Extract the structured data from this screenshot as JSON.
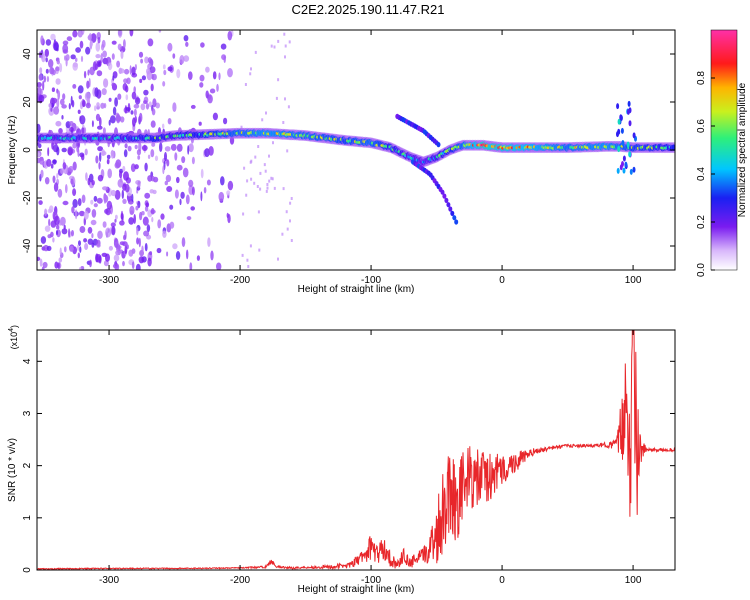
{
  "figure_title": "C2E2.2025.190.11.47.R21",
  "colors": {
    "snr_line": "#e8262a",
    "axis": "#000000",
    "colormap": [
      "#ffffff",
      "#b77bf7",
      "#7a1cf0",
      "#1a20f2",
      "#00c6ff",
      "#2ef07a",
      "#c9f01e",
      "#ffb400",
      "#ff1a1a",
      "#ff30a8"
    ]
  },
  "chart_data": [
    {
      "type": "heatmap",
      "title": "C2E2.2025.190.11.47.R21",
      "xlabel": "Height of straight line (km)",
      "ylabel": "Frequency (Hz)",
      "xlim": [
        -355,
        132
      ],
      "ylim": [
        -50,
        50
      ],
      "x_ticks": [
        -300,
        -200,
        -100,
        0,
        100
      ],
      "y_ticks": [
        -40,
        -20,
        0,
        20,
        40
      ],
      "x_tick_labels": [
        "-300",
        "-200",
        "-100",
        "0",
        "100"
      ],
      "y_tick_labels": [
        "-40",
        "-20",
        "0",
        "20",
        "40"
      ],
      "colorbar": {
        "label": "Normalized spectral amplitude",
        "range": [
          0,
          1
        ],
        "ticks": [
          0.0,
          0.2,
          0.4,
          0.6,
          0.8
        ],
        "tick_labels": [
          "0.0",
          "0.2",
          "0.4",
          "0.6",
          "0.8"
        ]
      },
      "ridge": {
        "description_units": "frequency (Hz) of the dominant spectral line vs height (km)",
        "x": [
          -355,
          -300,
          -265,
          -250,
          -200,
          -180,
          -150,
          -120,
          -100,
          -85,
          -70,
          -60,
          -50,
          -40,
          -30,
          -15,
          0,
          20,
          50,
          80,
          90,
          100,
          132
        ],
        "y": [
          5,
          5,
          5,
          6,
          7,
          7,
          6,
          4,
          3,
          1,
          -3,
          -5,
          -3,
          0,
          2,
          2,
          1,
          1,
          1,
          1.5,
          1.5,
          1,
          1
        ],
        "amplitude": [
          0.5,
          0.5,
          0.6,
          0.55,
          0.7,
          0.75,
          0.7,
          0.65,
          0.7,
          0.6,
          0.5,
          0.45,
          0.55,
          0.6,
          0.7,
          0.9,
          0.85,
          0.8,
          0.7,
          0.75,
          0.7,
          0.65,
          0.6
        ]
      },
      "noise_band": {
        "x_range": [
          -355,
          -205
        ],
        "y_range": [
          -50,
          50
        ],
        "amplitude": 0.2
      },
      "branches": [
        {
          "x": [
            -80,
            -60,
            -48
          ],
          "y": [
            14,
            8,
            2
          ]
        },
        {
          "x": [
            -68,
            -55,
            -45,
            -35
          ],
          "y": [
            -5,
            -10,
            -18,
            -30
          ]
        }
      ],
      "spike_region": {
        "x_range": [
          88,
          102
        ],
        "y_range": [
          -12,
          20
        ]
      }
    },
    {
      "type": "line",
      "xlabel": "Height of straight line (km)",
      "ylabel": "SNR (10 * v/v)",
      "y_scale_label": "(x10",
      "y_scale_exponent": "4",
      "xlim": [
        -355,
        132
      ],
      "ylim": [
        0,
        4.6
      ],
      "x_ticks": [
        -300,
        -200,
        -100,
        0,
        100
      ],
      "y_ticks": [
        0,
        1,
        2,
        3,
        4
      ],
      "x_tick_labels": [
        "-300",
        "-200",
        "-100",
        "0",
        "100"
      ],
      "y_tick_labels": [
        "0",
        "1",
        "2",
        "3",
        "4"
      ],
      "series": [
        {
          "color": "#e8262a",
          "x": [
            -355,
            -300,
            -250,
            -200,
            -180,
            -176,
            -172,
            -160,
            -150,
            -130,
            -115,
            -105,
            -100,
            -95,
            -90,
            -85,
            -80,
            -75,
            -70,
            -65,
            -60,
            -55,
            -50,
            -45,
            -40,
            -35,
            -30,
            -25,
            -20,
            -15,
            -10,
            -5,
            0,
            5,
            10,
            15,
            20,
            25,
            30,
            40,
            50,
            60,
            70,
            80,
            85,
            88,
            92,
            95,
            98,
            100,
            103,
            105,
            110,
            120,
            132
          ],
          "y": [
            0.02,
            0.03,
            0.03,
            0.04,
            0.06,
            0.18,
            0.06,
            0.04,
            0.05,
            0.06,
            0.1,
            0.28,
            0.45,
            0.3,
            0.42,
            0.2,
            0.1,
            0.28,
            0.12,
            0.22,
            0.25,
            0.45,
            0.7,
            1.2,
            1.6,
            1.3,
            1.6,
            1.8,
            1.7,
            1.8,
            1.75,
            1.85,
            1.9,
            2.0,
            2.05,
            2.15,
            2.2,
            2.28,
            2.3,
            2.35,
            2.38,
            2.38,
            2.38,
            2.4,
            2.4,
            2.45,
            2.7,
            3.6,
            2.0,
            4.6,
            2.1,
            2.3,
            2.3,
            2.3,
            2.3
          ],
          "jitter_amplitude": [
            0.01,
            0.01,
            0.01,
            0.01,
            0.02,
            0.05,
            0.02,
            0.02,
            0.02,
            0.04,
            0.06,
            0.15,
            0.25,
            0.2,
            0.22,
            0.15,
            0.08,
            0.15,
            0.1,
            0.15,
            0.18,
            0.3,
            0.6,
            0.9,
            0.9,
            0.8,
            0.7,
            0.6,
            0.6,
            0.55,
            0.5,
            0.4,
            0.3,
            0.25,
            0.2,
            0.15,
            0.1,
            0.06,
            0.05,
            0.04,
            0.03,
            0.03,
            0.03,
            0.05,
            0.08,
            0.15,
            0.8,
            1.2,
            1.4,
            1.5,
            1.3,
            0.4,
            0.03,
            0.03,
            0.03
          ]
        }
      ]
    }
  ]
}
